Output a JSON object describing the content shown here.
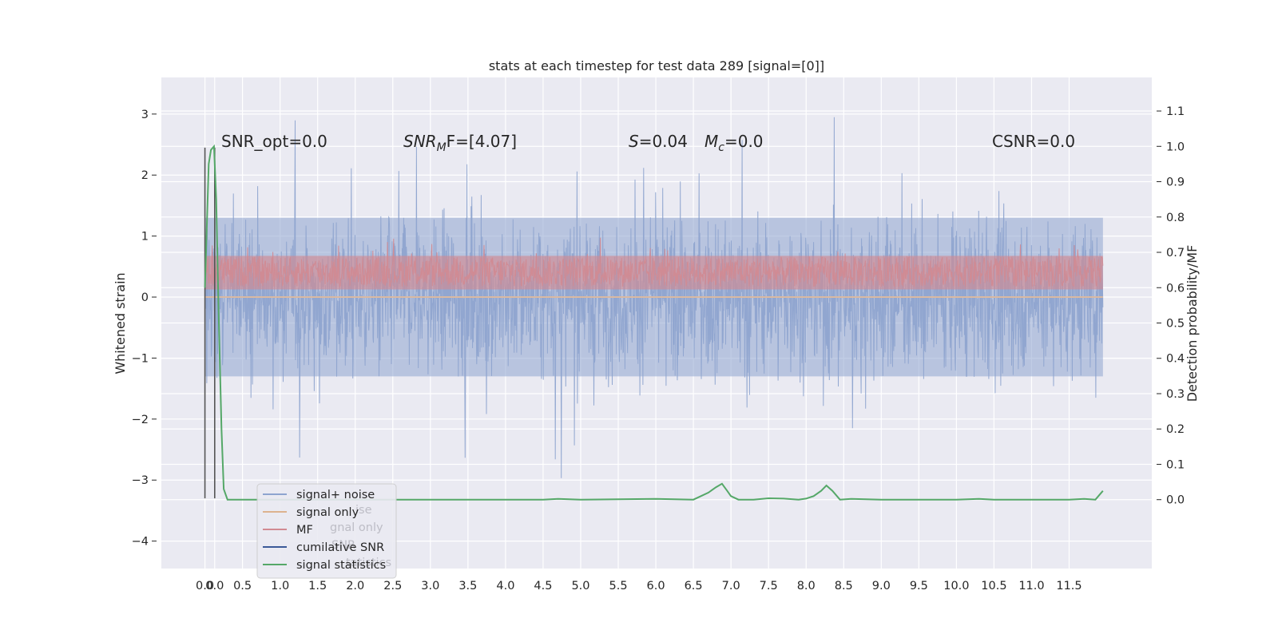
{
  "chart_data": {
    "type": "line",
    "title": "stats at each timestep for test data 289 [signal=[0]]",
    "ylabel_left": "Whitened strain",
    "ylabel_right": "Detection probability/MF",
    "xlabel": "",
    "x_ticks": [
      "0.0",
      "0.0",
      "0.5",
      "1.0",
      "1.5",
      "2.0",
      "2.5",
      "3.0",
      "3.5",
      "4.0",
      "4.5",
      "5.0",
      "5.5",
      "6.0",
      "6.5",
      "7.0",
      "7.5",
      "8.0",
      "8.5",
      "9.0",
      "9.5",
      "10.0",
      "10.5",
      "11.0",
      "11.5"
    ],
    "x_tick_values": [
      0.0,
      0.13,
      0.5,
      1.0,
      1.5,
      2.0,
      2.5,
      3.0,
      3.5,
      4.0,
      4.5,
      5.0,
      5.5,
      6.0,
      6.5,
      7.0,
      7.5,
      8.0,
      8.5,
      9.0,
      9.5,
      10.0,
      10.5,
      11.0,
      11.5
    ],
    "xlim": [
      -0.58,
      12.6
    ],
    "y_left_ticks": [
      "3",
      "2",
      "1",
      "0",
      "−1",
      "−2",
      "−3",
      "−4"
    ],
    "y_left_tick_values": [
      3,
      2,
      1,
      0,
      -1,
      -2,
      -3,
      -4
    ],
    "ylim_left": [
      -4.45,
      3.6
    ],
    "y_right_ticks": [
      "1.1",
      "1.0",
      "0.9",
      "0.8",
      "0.7",
      "0.6",
      "0.5",
      "0.4",
      "0.3",
      "0.2",
      "0.1",
      "0.0"
    ],
    "y_right_tick_values": [
      1.1,
      1.0,
      0.9,
      0.8,
      0.7,
      0.6,
      0.5,
      0.4,
      0.3,
      0.2,
      0.1,
      0.0
    ],
    "ylim_right": [
      -0.195,
      1.195
    ],
    "grid": true,
    "legend_placement": "lower-left",
    "legend": [
      {
        "label": "signal+ noise",
        "color": "#8ea4cf"
      },
      {
        "label": "signal only",
        "color": "#ddb28f"
      },
      {
        "label": "MF",
        "color": "#d18a92"
      },
      {
        "label": "cumilative SNR",
        "color": "#3b5998"
      },
      {
        "label": "signal statistics",
        "color": "#55a868"
      }
    ],
    "legend_ghost": [
      {
        "label": "ise"
      },
      {
        "label": "gnal only"
      },
      {
        "label": "SNR"
      },
      {
        "label": "tatistics"
      }
    ],
    "annotations": [
      {
        "text": "SNR_opt=0.0"
      },
      {
        "prefix": "SNR",
        "sub": "M",
        "suffix": "F=[4.07]"
      },
      {
        "prefix": "S",
        "sub": "",
        "suffix": "=0.04"
      },
      {
        "prefix": "M",
        "sub": "c",
        "suffix": "=0.0"
      },
      {
        "text": "CSNR=0.0"
      }
    ],
    "series": [
      {
        "name": "signal+ noise",
        "axis": "left",
        "color": "#8ea4cf",
        "x_range": [
          0.0,
          11.95
        ],
        "typical_range": [
          -1.3,
          1.3
        ],
        "extreme_range": [
          -3.3,
          3.25
        ]
      },
      {
        "name": "MF",
        "axis": "right",
        "color": "#d18a92",
        "x_range": [
          0.0,
          11.95
        ],
        "typical_range": [
          0.6,
          0.7
        ],
        "extreme_range": [
          0.59,
          0.75
        ]
      },
      {
        "name": "signal statistics",
        "axis": "right",
        "color": "#55a868",
        "x": [
          0.0,
          0.05,
          0.08,
          0.12,
          0.15,
          0.18,
          0.22,
          0.25,
          0.3,
          0.5,
          1.0,
          2.0,
          3.0,
          4.0,
          4.5,
          4.7,
          5.0,
          5.5,
          6.0,
          6.5,
          6.6,
          6.7,
          6.8,
          6.88,
          6.95,
          7.0,
          7.1,
          7.3,
          7.5,
          7.7,
          7.9,
          8.0,
          8.1,
          8.2,
          8.27,
          8.35,
          8.45,
          8.6,
          9.0,
          9.5,
          10.0,
          10.3,
          10.5,
          11.0,
          11.5,
          11.7,
          11.85,
          11.95
        ],
        "values": [
          0.6,
          0.95,
          0.99,
          1.0,
          0.85,
          0.55,
          0.2,
          0.03,
          0.0,
          0.0,
          0.0,
          0.0,
          0.0,
          0.0,
          0.0,
          0.002,
          0.0,
          0.001,
          0.002,
          0.0,
          0.01,
          0.02,
          0.035,
          0.045,
          0.025,
          0.01,
          0.0,
          0.0,
          0.004,
          0.003,
          0.0,
          0.003,
          0.01,
          0.025,
          0.04,
          0.025,
          0.0,
          0.002,
          0.0,
          0.0,
          0.0,
          0.002,
          0.0,
          0.0,
          0.0,
          0.002,
          0.0,
          0.025
        ]
      },
      {
        "name": "cumilative SNR",
        "axis": "left",
        "color": "#555555",
        "x": [
          0.0,
          0.13
        ],
        "vertical_lines_range": [
          -3.3,
          2.45
        ]
      }
    ]
  }
}
